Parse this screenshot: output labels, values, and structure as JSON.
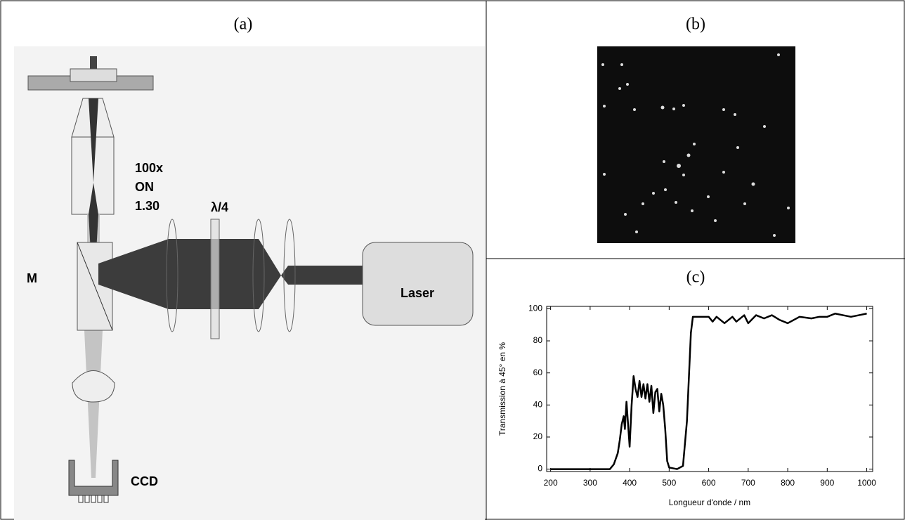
{
  "panels": {
    "a": "(a)",
    "b": "(b)",
    "c": "(c)"
  },
  "diagram": {
    "objective": [
      "100x",
      "ON",
      "1.30"
    ],
    "waveplate": "λ/4",
    "mirror": "M",
    "laser": "Laser",
    "camera": "CCD"
  },
  "chart_data": {
    "type": "line",
    "x_label": "Longueur d'onde / nm",
    "y_label": "Transmission à 45° en %",
    "x": [
      200,
      350,
      360,
      370,
      375,
      380,
      385,
      388,
      392,
      396,
      400,
      405,
      410,
      415,
      420,
      425,
      430,
      435,
      440,
      445,
      450,
      455,
      460,
      465,
      470,
      475,
      480,
      485,
      490,
      495,
      500,
      520,
      535,
      545,
      555,
      560,
      580,
      600,
      610,
      620,
      640,
      660,
      670,
      690,
      700,
      720,
      740,
      760,
      780,
      800,
      830,
      860,
      880,
      900,
      920,
      940,
      960,
      980,
      1000
    ],
    "series": [
      {
        "color": "#000000",
        "values": [
          0,
          0,
          3,
          10,
          18,
          28,
          33,
          25,
          42,
          28,
          14,
          40,
          58,
          50,
          45,
          55,
          45,
          53,
          44,
          53,
          42,
          52,
          35,
          48,
          50,
          36,
          47,
          40,
          25,
          5,
          1,
          0,
          2,
          30,
          85,
          95,
          95,
          95,
          92,
          95,
          91,
          95,
          92,
          96,
          91,
          96,
          94,
          96,
          93,
          91,
          95,
          94,
          95,
          95,
          97,
          96,
          95,
          96,
          97
        ]
      }
    ],
    "xlim": [
      190,
      1015
    ],
    "ylim": [
      -1.5,
      101.5
    ],
    "xticks": [
      200,
      300,
      400,
      500,
      600,
      700,
      800,
      900,
      1000
    ],
    "yticks": [
      0,
      20,
      40,
      60,
      80,
      100
    ]
  }
}
